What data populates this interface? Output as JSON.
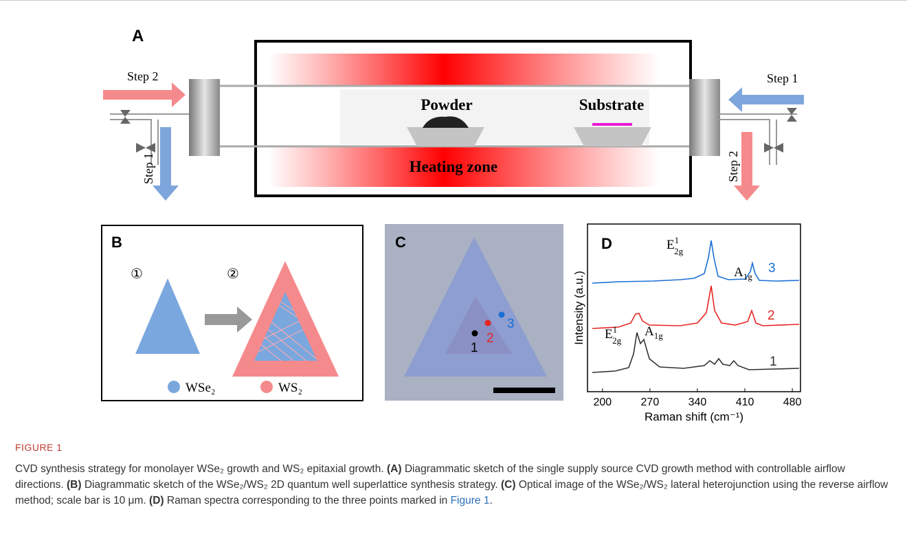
{
  "panel_a": {
    "label": "A",
    "left_step_in": "Step 2",
    "left_step_out": "Step 1",
    "right_step_in": "Step 1",
    "right_step_out": "Step 2",
    "powder": "Powder",
    "substrate": "Substrate",
    "heating_zone": "Heating zone"
  },
  "panel_b": {
    "label": "B",
    "step_1": "①",
    "step_2": "②",
    "legend": [
      "WSe₂",
      "WS₂"
    ]
  },
  "panel_c": {
    "label": "C",
    "points": [
      "1",
      "2",
      "3"
    ]
  },
  "panel_d": {
    "label": "D",
    "peak_labels": [
      {
        "base": "E",
        "sup": "1",
        "sub": "2g"
      },
      {
        "base": "A",
        "sub": "1g"
      },
      {
        "base": "E",
        "sup": "1",
        "sub": "2g"
      },
      {
        "base": "A",
        "sub": "1g"
      }
    ],
    "spectra": [
      "3",
      "2",
      "1"
    ],
    "y_label": "Intensity (a.u.)",
    "x_label": "Raman shift (cm⁻¹)",
    "xlim": [
      185,
      490
    ],
    "xticks": [
      200,
      270,
      340,
      410,
      480
    ]
  },
  "caption": {
    "figure": "FIGURE 1",
    "intro": "CVD synthesis strategy for monolayer WSe₂ growth and WS₂ epitaxial growth.",
    "items": [
      {
        "label": "(A)",
        "text": "Diagrammatic sketch of the single supply source CVD growth method with controllable airflow directions."
      },
      {
        "label": "(B)",
        "text": "Diagrammatic sketch of the WSe₂/WS₂ 2D quantum well superlattice synthesis strategy."
      },
      {
        "label": "(C)",
        "text": "Optical image of the WSe₂/WS₂ lateral heterojunction using the reverse airflow method; scale bar is 10 μm."
      },
      {
        "label": "(D)",
        "text": "Raman spectra corresponding to the three points marked in",
        "link": "Figure 1",
        "tail": "."
      }
    ]
  }
}
